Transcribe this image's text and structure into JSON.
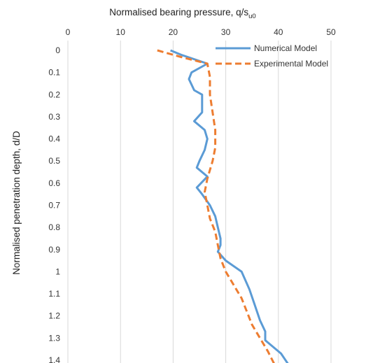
{
  "chart_data": {
    "type": "line",
    "title": "",
    "xlabel": "Normalised bearing pressure, q/s",
    "xlabel_sub": "u0",
    "ylabel": "Normalised penetration depth, d/D",
    "xlim": [
      0,
      50
    ],
    "ylim": [
      0,
      1.4
    ],
    "x_ticks": [
      "0",
      "10",
      "20",
      "30",
      "40",
      "50"
    ],
    "y_ticks": [
      "0",
      "0.1",
      "0.2",
      "0.3",
      "0.4",
      "0.5",
      "0.6",
      "0.7",
      "0.8",
      "0.9",
      "1",
      "1.1",
      "1.2",
      "1.3",
      "1.4"
    ],
    "x_axis_position": "top",
    "y_axis_inverted": true,
    "grid": "vertical",
    "legend_position": "top-right",
    "colors": {
      "numerical": "#5B9BD5",
      "experimental": "#ED7D31",
      "grid": "#D9D9D9"
    },
    "series": [
      {
        "name": "Numerical Model",
        "style": "solid",
        "points": [
          [
            19.5,
            0.0
          ],
          [
            21.5,
            0.02
          ],
          [
            26.5,
            0.06
          ],
          [
            23.5,
            0.1
          ],
          [
            23.0,
            0.13
          ],
          [
            24.0,
            0.18
          ],
          [
            25.5,
            0.2
          ],
          [
            25.5,
            0.25
          ],
          [
            25.5,
            0.28
          ],
          [
            24.0,
            0.32
          ],
          [
            26.0,
            0.36
          ],
          [
            26.5,
            0.4
          ],
          [
            26.0,
            0.45
          ],
          [
            25.0,
            0.5
          ],
          [
            24.5,
            0.53
          ],
          [
            26.5,
            0.57
          ],
          [
            24.5,
            0.62
          ],
          [
            25.5,
            0.65
          ],
          [
            27.0,
            0.7
          ],
          [
            28.0,
            0.75
          ],
          [
            28.5,
            0.8
          ],
          [
            29.0,
            0.85
          ],
          [
            29.0,
            0.88
          ],
          [
            28.5,
            0.91
          ],
          [
            30.0,
            0.95
          ],
          [
            33.0,
            1.0
          ],
          [
            34.5,
            1.08
          ],
          [
            35.5,
            1.15
          ],
          [
            36.5,
            1.22
          ],
          [
            37.5,
            1.27
          ],
          [
            37.5,
            1.31
          ],
          [
            40.5,
            1.37
          ],
          [
            42.5,
            1.44
          ]
        ]
      },
      {
        "name": "Experimental Model",
        "style": "dashed",
        "points": [
          [
            17.0,
            0.0
          ],
          [
            21.5,
            0.03
          ],
          [
            26.5,
            0.06
          ],
          [
            27.0,
            0.12
          ],
          [
            27.0,
            0.2
          ],
          [
            27.5,
            0.28
          ],
          [
            28.0,
            0.36
          ],
          [
            28.0,
            0.44
          ],
          [
            27.5,
            0.5
          ],
          [
            26.5,
            0.58
          ],
          [
            26.0,
            0.64
          ],
          [
            26.5,
            0.7
          ],
          [
            27.0,
            0.76
          ],
          [
            28.0,
            0.82
          ],
          [
            28.5,
            0.88
          ],
          [
            29.0,
            0.94
          ],
          [
            30.0,
            1.0
          ],
          [
            31.5,
            1.06
          ],
          [
            33.0,
            1.12
          ],
          [
            34.0,
            1.18
          ],
          [
            35.0,
            1.24
          ],
          [
            36.5,
            1.3
          ],
          [
            38.0,
            1.36
          ],
          [
            39.5,
            1.43
          ]
        ]
      }
    ]
  }
}
